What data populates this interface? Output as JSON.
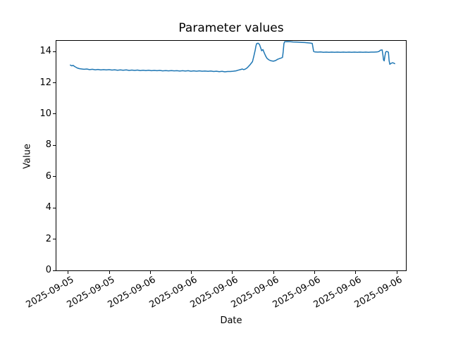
{
  "chart_data": {
    "type": "line",
    "title": "Parameter values",
    "xlabel": "Date",
    "ylabel": "Value",
    "ylim": [
      0,
      14.68
    ],
    "grid": false,
    "legend": null,
    "line_color": "#1f77b4",
    "background_color": "#ffffff",
    "text_color": "#000000",
    "y_ticks": [
      0,
      2,
      4,
      6,
      8,
      10,
      12,
      14
    ],
    "x_ticks": [
      {
        "f": 0.034,
        "label": "2025-09-05"
      },
      {
        "f": 0.152,
        "label": "2025-09-05"
      },
      {
        "f": 0.269,
        "label": "2025-09-06"
      },
      {
        "f": 0.387,
        "label": "2025-09-06"
      },
      {
        "f": 0.504,
        "label": "2025-09-06"
      },
      {
        "f": 0.621,
        "label": "2025-09-06"
      },
      {
        "f": 0.739,
        "label": "2025-09-06"
      },
      {
        "f": 0.856,
        "label": "2025-09-06"
      },
      {
        "f": 0.974,
        "label": "2025-09-06"
      }
    ],
    "x_unit": "fraction-of-x-axis",
    "series": [
      {
        "name": "Parameter values",
        "points": [
          [
            0.04,
            13.13
          ],
          [
            0.044,
            13.08
          ],
          [
            0.048,
            13.11
          ],
          [
            0.052,
            13.04
          ],
          [
            0.056,
            12.99
          ],
          [
            0.06,
            12.94
          ],
          [
            0.066,
            12.9
          ],
          [
            0.073,
            12.88
          ],
          [
            0.079,
            12.86
          ],
          [
            0.087,
            12.88
          ],
          [
            0.095,
            12.84
          ],
          [
            0.103,
            12.86
          ],
          [
            0.111,
            12.83
          ],
          [
            0.119,
            12.85
          ],
          [
            0.127,
            12.82
          ],
          [
            0.135,
            12.84
          ],
          [
            0.143,
            12.82
          ],
          [
            0.151,
            12.84
          ],
          [
            0.159,
            12.81
          ],
          [
            0.167,
            12.83
          ],
          [
            0.175,
            12.8
          ],
          [
            0.183,
            12.82
          ],
          [
            0.191,
            12.8
          ],
          [
            0.2,
            12.82
          ],
          [
            0.208,
            12.79
          ],
          [
            0.216,
            12.81
          ],
          [
            0.224,
            12.79
          ],
          [
            0.232,
            12.81
          ],
          [
            0.24,
            12.78
          ],
          [
            0.248,
            12.8
          ],
          [
            0.256,
            12.78
          ],
          [
            0.264,
            12.8
          ],
          [
            0.272,
            12.77
          ],
          [
            0.28,
            12.79
          ],
          [
            0.288,
            12.77
          ],
          [
            0.296,
            12.79
          ],
          [
            0.304,
            12.76
          ],
          [
            0.313,
            12.78
          ],
          [
            0.321,
            12.76
          ],
          [
            0.329,
            12.78
          ],
          [
            0.337,
            12.76
          ],
          [
            0.345,
            12.77
          ],
          [
            0.353,
            12.75
          ],
          [
            0.361,
            12.77
          ],
          [
            0.369,
            12.75
          ],
          [
            0.377,
            12.77
          ],
          [
            0.385,
            12.74
          ],
          [
            0.393,
            12.76
          ],
          [
            0.401,
            12.74
          ],
          [
            0.409,
            12.76
          ],
          [
            0.417,
            12.74
          ],
          [
            0.425,
            12.75
          ],
          [
            0.434,
            12.73
          ],
          [
            0.442,
            12.75
          ],
          [
            0.45,
            12.72
          ],
          [
            0.458,
            12.74
          ],
          [
            0.466,
            12.71
          ],
          [
            0.474,
            12.73
          ],
          [
            0.482,
            12.7
          ],
          [
            0.49,
            12.72
          ],
          [
            0.498,
            12.72
          ],
          [
            0.506,
            12.74
          ],
          [
            0.514,
            12.76
          ],
          [
            0.52,
            12.8
          ],
          [
            0.526,
            12.84
          ],
          [
            0.532,
            12.88
          ],
          [
            0.536,
            12.84
          ],
          [
            0.54,
            12.87
          ],
          [
            0.544,
            12.92
          ],
          [
            0.548,
            13.0
          ],
          [
            0.554,
            13.15
          ],
          [
            0.561,
            13.35
          ],
          [
            0.565,
            13.7
          ],
          [
            0.569,
            14.1
          ],
          [
            0.571,
            14.35
          ],
          [
            0.573,
            14.5
          ],
          [
            0.577,
            14.53
          ],
          [
            0.581,
            14.45
          ],
          [
            0.585,
            14.2
          ],
          [
            0.587,
            14.05
          ],
          [
            0.591,
            14.12
          ],
          [
            0.595,
            13.9
          ],
          [
            0.599,
            13.7
          ],
          [
            0.603,
            13.55
          ],
          [
            0.609,
            13.45
          ],
          [
            0.615,
            13.4
          ],
          [
            0.621,
            13.38
          ],
          [
            0.627,
            13.42
          ],
          [
            0.633,
            13.5
          ],
          [
            0.639,
            13.55
          ],
          [
            0.643,
            13.58
          ],
          [
            0.647,
            13.62
          ],
          [
            0.649,
            14.0
          ],
          [
            0.651,
            14.5
          ],
          [
            0.653,
            14.62
          ],
          [
            0.661,
            14.63
          ],
          [
            0.669,
            14.62
          ],
          [
            0.677,
            14.61
          ],
          [
            0.686,
            14.6
          ],
          [
            0.694,
            14.59
          ],
          [
            0.702,
            14.58
          ],
          [
            0.71,
            14.57
          ],
          [
            0.718,
            14.56
          ],
          [
            0.726,
            14.54
          ],
          [
            0.732,
            14.52
          ],
          [
            0.734,
            14.25
          ],
          [
            0.736,
            14.0
          ],
          [
            0.74,
            13.97
          ],
          [
            0.748,
            13.96
          ],
          [
            0.756,
            13.97
          ],
          [
            0.764,
            13.95
          ],
          [
            0.772,
            13.96
          ],
          [
            0.78,
            13.95
          ],
          [
            0.788,
            13.96
          ],
          [
            0.796,
            13.95
          ],
          [
            0.804,
            13.96
          ],
          [
            0.813,
            13.95
          ],
          [
            0.821,
            13.96
          ],
          [
            0.829,
            13.95
          ],
          [
            0.837,
            13.96
          ],
          [
            0.845,
            13.95
          ],
          [
            0.853,
            13.96
          ],
          [
            0.861,
            13.95
          ],
          [
            0.869,
            13.96
          ],
          [
            0.877,
            13.95
          ],
          [
            0.885,
            13.96
          ],
          [
            0.893,
            13.95
          ],
          [
            0.901,
            13.96
          ],
          [
            0.909,
            13.96
          ],
          [
            0.917,
            13.97
          ],
          [
            0.923,
            14.0
          ],
          [
            0.927,
            14.08
          ],
          [
            0.932,
            14.1
          ],
          [
            0.934,
            13.8
          ],
          [
            0.936,
            13.45
          ],
          [
            0.938,
            13.4
          ],
          [
            0.94,
            13.7
          ],
          [
            0.942,
            13.95
          ],
          [
            0.944,
            14.0
          ],
          [
            0.948,
            13.98
          ],
          [
            0.95,
            13.95
          ],
          [
            0.952,
            13.4
          ],
          [
            0.954,
            13.18
          ],
          [
            0.958,
            13.25
          ],
          [
            0.962,
            13.28
          ],
          [
            0.966,
            13.25
          ],
          [
            0.968,
            13.22
          ]
        ]
      }
    ]
  }
}
